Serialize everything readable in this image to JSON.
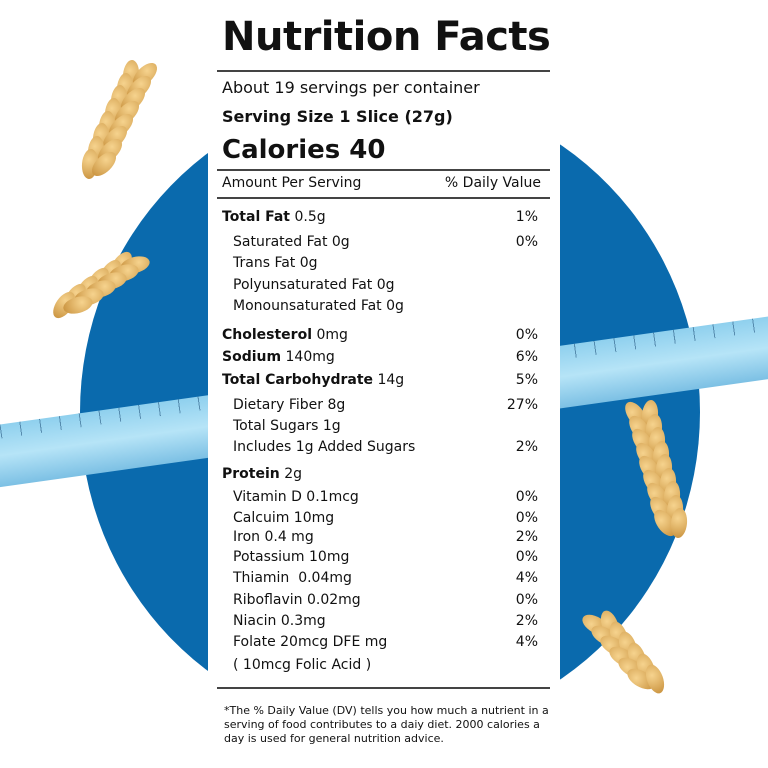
{
  "title": "Nutrition Facts",
  "servings": "About 19 servings per container",
  "serving_size": "Serving Size 1 Slice (27g)",
  "calories": "Calories 40",
  "header": {
    "amount": "Amount Per Serving",
    "dv": "% Daily Value"
  },
  "rows": [
    {
      "bold": "Total Fat",
      "value": " 0.5g",
      "pct": "1%"
    },
    {
      "label": "Saturated Fat 0g",
      "pct": "0%"
    },
    {
      "label": "Trans Fat 0g",
      "pct": ""
    },
    {
      "label": "Polyunsaturated Fat 0g",
      "pct": ""
    },
    {
      "label": "Monounsaturated Fat 0g",
      "pct": ""
    },
    {
      "bold": "Cholesterol",
      "value": " 0mg",
      "pct": "0%"
    },
    {
      "bold": "Sodium",
      "value": " 140mg",
      "pct": "6%"
    },
    {
      "bold": "Total Carbohydrate",
      "value": " 14g",
      "pct": "5%"
    },
    {
      "label": "Dietary Fiber 8g",
      "pct": "27%"
    },
    {
      "label": "Total Sugars 1g",
      "pct": ""
    },
    {
      "label": "Includes 1g Added Sugars",
      "pct": "2%"
    },
    {
      "bold": "Protein",
      "value": " 2g",
      "pct": ""
    },
    {
      "label": "Vitamin D 0.1mcg",
      "pct": "0%"
    },
    {
      "label": "Calcuim 10mg",
      "pct": "0%"
    },
    {
      "label": "Iron 0.4 mg",
      "pct": "2%"
    },
    {
      "label": "Potassium 10mg",
      "pct": "0%"
    },
    {
      "label": "Thiamin  0.04mg",
      "pct": "4%"
    },
    {
      "label": "Riboflavin 0.02mg",
      "pct": "0%"
    },
    {
      "label": "Niacin 0.3mg",
      "pct": "2%"
    },
    {
      "label": "Folate 20mcg DFE mg",
      "pct": "4%"
    },
    {
      "label": "( 10mcg Folic Acid )",
      "pct": ""
    }
  ],
  "footnote": "*The % Daily Value (DV) tells you how much a nutrient in a serving of food contributes to a daiy diet. 2000 calories a day is used for general nutrition advice.",
  "colors": {
    "circle": "#0a6aad",
    "tape": "#9fd8f2",
    "wheat": "#e0b060"
  }
}
